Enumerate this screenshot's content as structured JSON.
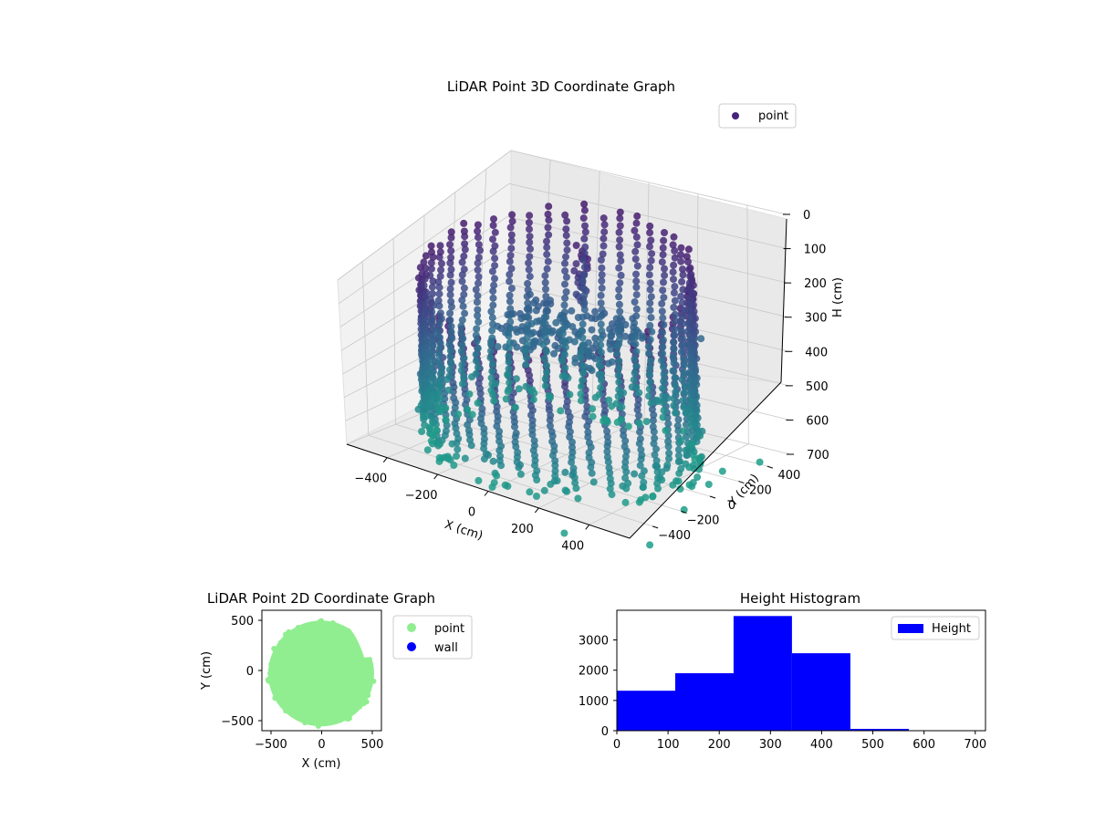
{
  "chart_data": [
    {
      "type": "scatter",
      "projection": "3d",
      "title": "LiDAR Point 3D Coordinate Graph",
      "xlabel": "X (cm)",
      "ylabel": "Y (cm)",
      "zlabel": "H (cm)",
      "x_ticks": [
        "−400",
        "−200",
        "0",
        "200",
        "400"
      ],
      "y_ticks": [
        "−400",
        "−200",
        "0",
        "200",
        "400"
      ],
      "z_ticks": [
        "0",
        "100",
        "200",
        "300",
        "400",
        "500",
        "600",
        "700"
      ],
      "zlim": [
        0,
        700
      ],
      "z_inverted": true,
      "grid": true,
      "legend": {
        "placement": "top-right",
        "entries": [
          "point"
        ]
      },
      "colormap": "viridis",
      "description": "ring of points around radius ~480 cm with vertical wall strips and an inner cluster",
      "outliers": [
        {
          "x": 250,
          "y": 500,
          "h": 400
        },
        {
          "x": 520,
          "y": 420,
          "h": 700
        },
        {
          "x": 470,
          "y": 250,
          "h": 700
        },
        {
          "x": 500,
          "y": 100,
          "h": 700
        },
        {
          "x": 420,
          "y": -150,
          "h": 700
        },
        {
          "x": 560,
          "y": -180,
          "h": 700
        },
        {
          "x": 640,
          "y": -560,
          "h": 700
        },
        {
          "x": 380,
          "y": -700,
          "h": 700
        }
      ]
    },
    {
      "type": "scatter",
      "title": "LiDAR Point 2D Coordinate Graph",
      "xlabel": "X (cm)",
      "ylabel": "Y (cm)",
      "x_ticks": [
        "−500",
        "0",
        "500"
      ],
      "y_ticks": [
        "−500",
        "0",
        "500"
      ],
      "xlim": [
        -590,
        590
      ],
      "ylim": [
        -600,
        600
      ],
      "legend": {
        "placement": "outside-right",
        "entries": [
          "point",
          "wall"
        ]
      },
      "series": [
        {
          "name": "point",
          "color": "#90ee90",
          "shape": "filled disk of radius ~500 cm centered near (0, -30) with a gap on the upper right"
        },
        {
          "name": "wall",
          "color": "#0000ff"
        }
      ]
    },
    {
      "type": "bar",
      "title": "Height Histogram",
      "x_ticks": [
        "0",
        "100",
        "200",
        "300",
        "400",
        "500",
        "600",
        "700"
      ],
      "y_ticks": [
        "0",
        "1000",
        "2000",
        "3000"
      ],
      "xlim": [
        0,
        720
      ],
      "ylim": [
        0,
        3980
      ],
      "legend": {
        "placement": "top-right",
        "entries": [
          "Height"
        ]
      },
      "series": [
        {
          "name": "Height",
          "color": "#0000ff",
          "bins": [
            0,
            114,
            228,
            342,
            456,
            570,
            684
          ],
          "values": [
            1320,
            1900,
            3790,
            2560,
            60,
            5
          ]
        }
      ]
    }
  ]
}
